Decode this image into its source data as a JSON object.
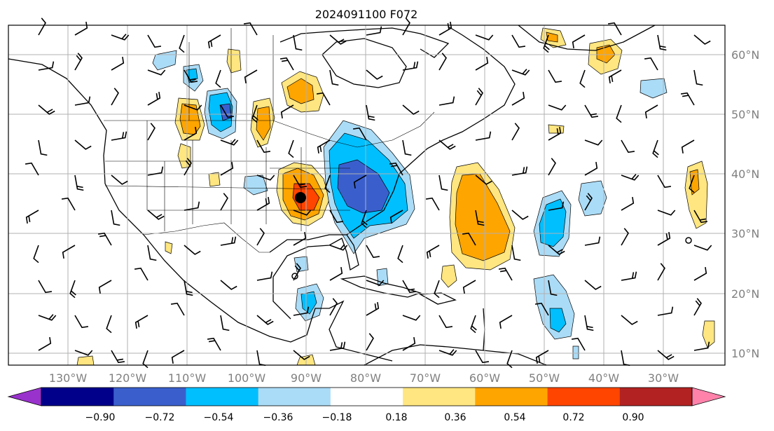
{
  "title": "2024091100 F072",
  "lat_labels": [
    "60°N",
    "50°N",
    "40°N",
    "30°N",
    "20°N",
    "10°N"
  ],
  "lon_labels": [
    "130°W",
    "120°W",
    "110°W",
    "100°W",
    "90°W",
    "80°W",
    "70°W",
    "60°W",
    "50°W",
    "40°W",
    "30°W"
  ],
  "colorbar": {
    "ticks": [
      "−0.90",
      "−0.72",
      "−0.54",
      "−0.36",
      "−0.18",
      "0.18",
      "0.36",
      "0.54",
      "0.72",
      "0.90"
    ],
    "colors": [
      "#9932cc",
      "#00008b",
      "#3a5fcd",
      "#00bfff",
      "#abdcf7",
      "#ffffff",
      "#ffe680",
      "#ffa500",
      "#ff4500",
      "#b22222",
      "#ff82ab"
    ]
  },
  "marker": "black dot at approx 90°W 36°N",
  "anomaly_colors": {
    "pos1": "#ffe680",
    "pos2": "#ffa500",
    "pos3": "#ff4500",
    "neg1": "#abdcf7",
    "neg2": "#00bfff",
    "neg3": "#3a5fcd"
  }
}
